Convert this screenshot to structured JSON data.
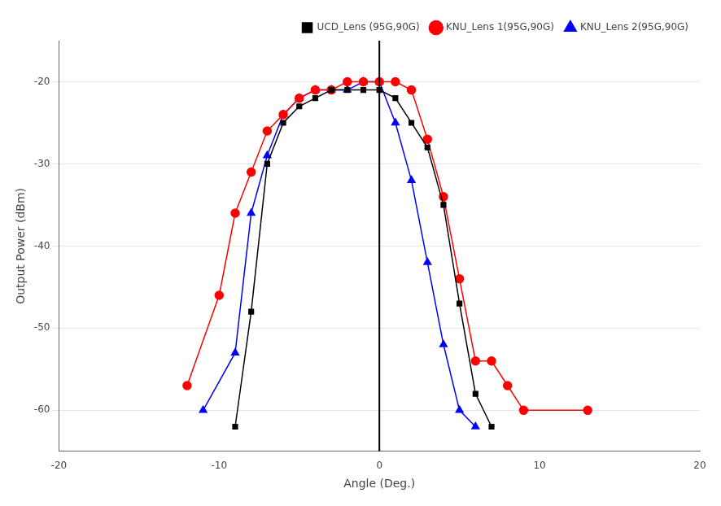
{
  "chart_data": {
    "type": "line",
    "xlabel": "Angle (Deg.)",
    "ylabel": "Output Power (dBm)",
    "series": [
      {
        "name": "UCD_Lens (95G,90G)",
        "color": "#000000",
        "marker": "square",
        "x": [
          -9,
          -8,
          -7,
          -6,
          -5,
          -4,
          -3,
          -2,
          -1,
          0,
          1,
          2,
          3,
          4,
          5,
          6,
          7
        ],
        "values": [
          -62,
          -48,
          -30,
          -25,
          -23,
          -22,
          -21,
          -21,
          -21,
          -21,
          -22,
          -25,
          -28,
          -35,
          -47,
          -58,
          -62
        ]
      },
      {
        "name": "KNU_Lens 1(95G,90G)",
        "color": "#ff0000",
        "marker": "circle",
        "x": [
          -12,
          -10,
          -9,
          -8,
          -7,
          -6,
          -5,
          -4,
          -3,
          -2,
          -1,
          0,
          1,
          2,
          3,
          4,
          5,
          6,
          7,
          8,
          9,
          13
        ],
        "values": [
          -57,
          -46,
          -36,
          -31,
          -26,
          -24,
          -22,
          -21,
          -21,
          -20,
          -20,
          -20,
          -20,
          -21,
          -27,
          -34,
          -44,
          -54,
          -54,
          -57,
          -60,
          -60
        ]
      },
      {
        "name": "KNU_Lens 2(95G,90G)",
        "color": "#0000ff",
        "marker": "triangle",
        "x": [
          -11,
          -9,
          -8,
          -7,
          -6,
          -5,
          -4,
          -3,
          -2,
          -1,
          0,
          1,
          2,
          3,
          4,
          5,
          6
        ],
        "values": [
          -60,
          -53,
          -36,
          -29,
          -24,
          -22,
          -21,
          -21,
          -21,
          -20,
          -20,
          -25,
          -32,
          -42,
          -52,
          -60,
          -62
        ]
      }
    ],
    "vline_x": 0,
    "xlim": [
      -20,
      20
    ],
    "ylim": [
      -65,
      -15
    ],
    "xticks": [
      -20,
      -10,
      0,
      10,
      20
    ],
    "yticks": [
      -60,
      -50,
      -40,
      -30,
      -20
    ],
    "grid": "y",
    "legend": "upper right"
  }
}
